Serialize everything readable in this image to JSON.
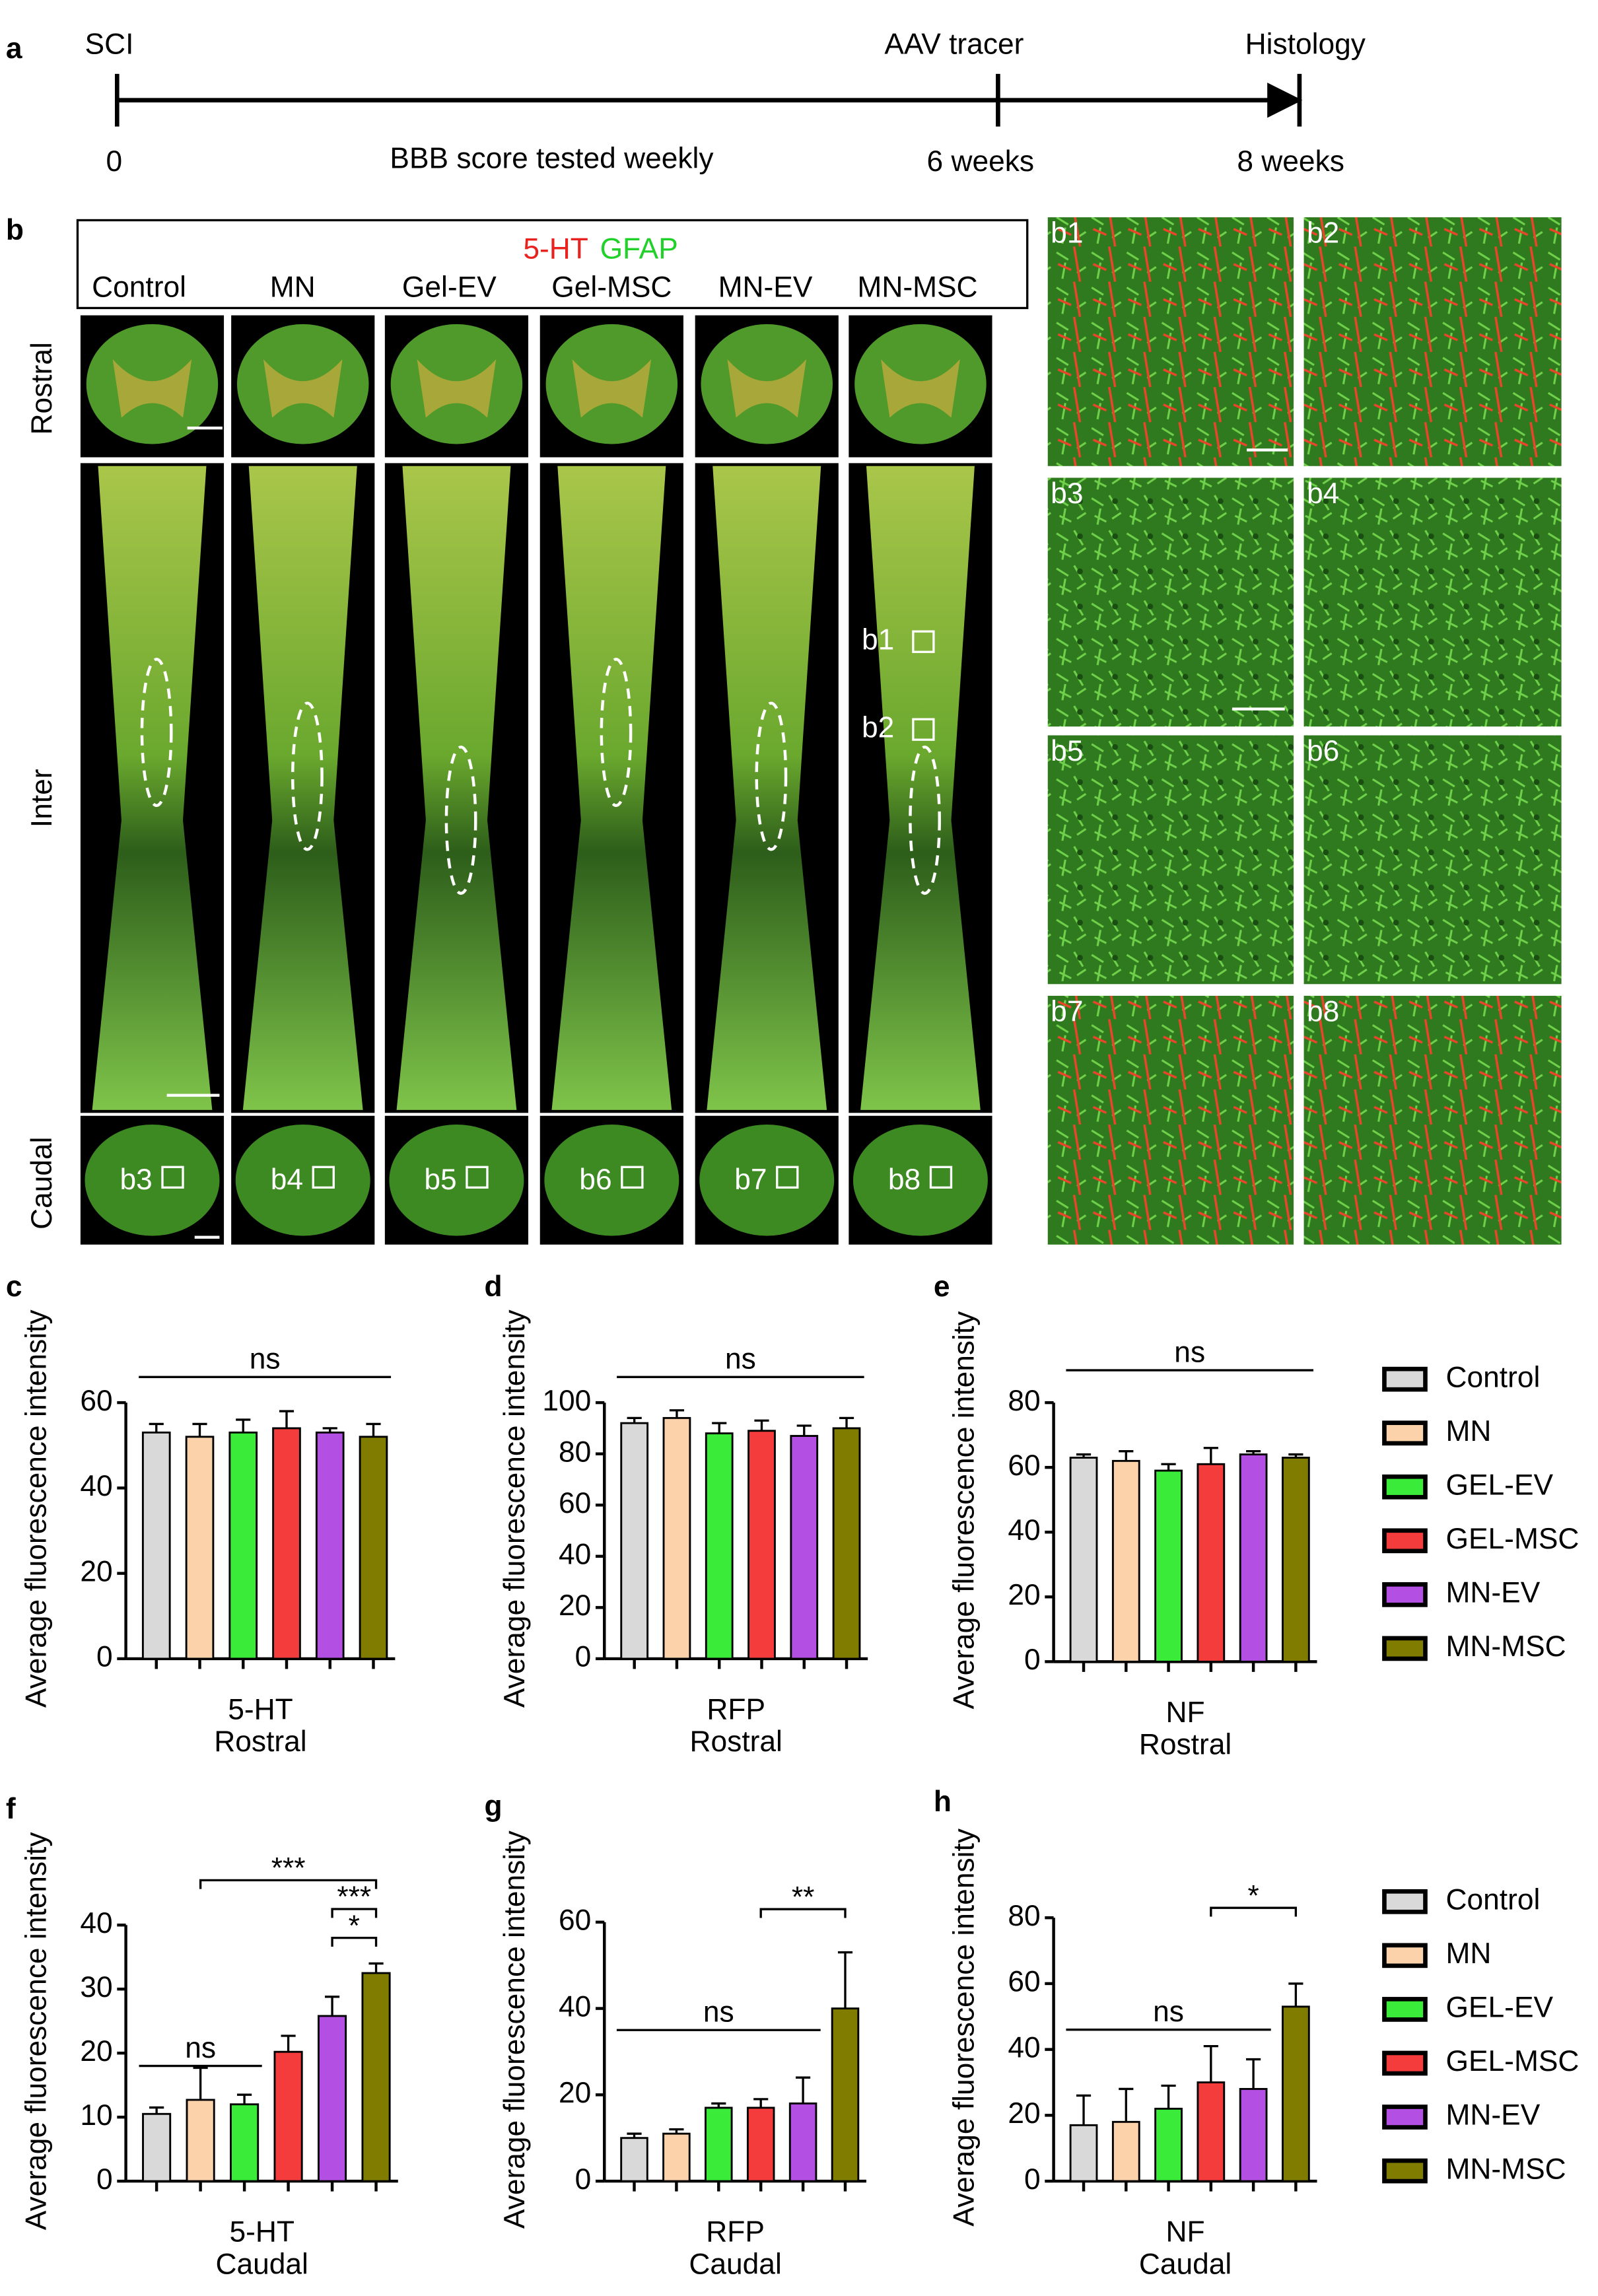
{
  "timeline": {
    "label": "a",
    "events": [
      "SCI",
      "AAV tracer",
      "Histology"
    ],
    "times": [
      "0",
      "6 weeks",
      "8  weeks"
    ],
    "note": "BBB score tested weekly"
  },
  "panel_b": {
    "label": "b",
    "stain": [
      "5-HT",
      "GFAP"
    ],
    "columns": [
      "Control",
      "MN",
      "Gel-EV",
      "Gel-MSC",
      "MN-EV",
      "MN-MSC"
    ],
    "rows": [
      "Rostral",
      "Inter",
      "Caudal"
    ],
    "insets": [
      "b1",
      "b2",
      "b3",
      "b4",
      "b5",
      "b6",
      "b7",
      "b8"
    ]
  },
  "chart_data": [
    {
      "type": "bar",
      "panel": "c",
      "ylabel": "Average fluorescence intensity",
      "xlabel": [
        "5-HT",
        "Rostral"
      ],
      "categories": [
        "Control",
        "MN",
        "GEL-EV",
        "GEL-MSC",
        "MN-EV",
        "MN-MSC"
      ],
      "colors": [
        "#d9d9d9",
        "#fcd2aa",
        "#3aeb3a",
        "#f43c3c",
        "#b34fe3",
        "#807c00"
      ],
      "values": [
        53,
        52,
        53,
        54,
        53,
        52
      ],
      "errors": [
        2,
        3,
        3,
        4,
        1,
        3
      ],
      "ylim": [
        0,
        60
      ],
      "yticks": [
        0,
        20,
        40,
        60
      ],
      "annotations": [
        "ns"
      ]
    },
    {
      "type": "bar",
      "panel": "d",
      "ylabel": "Average fluorescence intensity",
      "xlabel": [
        "RFP",
        "Rostral"
      ],
      "categories": [
        "Control",
        "MN",
        "GEL-EV",
        "GEL-MSC",
        "MN-EV",
        "MN-MSC"
      ],
      "colors": [
        "#d9d9d9",
        "#fcd2aa",
        "#3aeb3a",
        "#f43c3c",
        "#b34fe3",
        "#807c00"
      ],
      "values": [
        92,
        94,
        88,
        89,
        87,
        90
      ],
      "errors": [
        2,
        3,
        4,
        4,
        4,
        4
      ],
      "ylim": [
        0,
        100
      ],
      "yticks": [
        0,
        20,
        40,
        60,
        80,
        100
      ],
      "annotations": [
        "ns"
      ]
    },
    {
      "type": "bar",
      "panel": "e",
      "ylabel": "Average fluorescence intensity",
      "xlabel": [
        "NF",
        "Rostral"
      ],
      "categories": [
        "Control",
        "MN",
        "GEL-EV",
        "GEL-MSC",
        "MN-EV",
        "MN-MSC"
      ],
      "colors": [
        "#d9d9d9",
        "#fcd2aa",
        "#3aeb3a",
        "#f43c3c",
        "#b34fe3",
        "#807c00"
      ],
      "values": [
        63,
        62,
        59,
        61,
        64,
        63
      ],
      "errors": [
        1,
        3,
        2,
        5,
        1,
        1
      ],
      "ylim": [
        0,
        80
      ],
      "yticks": [
        0,
        20,
        40,
        60,
        80
      ],
      "annotations": [
        "ns"
      ]
    },
    {
      "type": "bar",
      "panel": "f",
      "ylabel": "Average fluorescence intensity",
      "xlabel": [
        "5-HT",
        "Caudal"
      ],
      "categories": [
        "Control",
        "MN",
        "GEL-EV",
        "GEL-MSC",
        "MN-EV",
        "MN-MSC"
      ],
      "colors": [
        "#d9d9d9",
        "#fcd2aa",
        "#3aeb3a",
        "#f43c3c",
        "#b34fe3",
        "#807c00"
      ],
      "values": [
        10.5,
        12.7,
        12,
        20.2,
        25.8,
        32.5
      ],
      "errors": [
        1,
        5,
        1.5,
        2.5,
        3,
        1.5
      ],
      "ylim": [
        0,
        40
      ],
      "yticks": [
        0,
        10,
        20,
        30,
        40
      ],
      "annotations": [
        "ns",
        "***",
        "***",
        "*"
      ]
    },
    {
      "type": "bar",
      "panel": "g",
      "ylabel": "Average fluorescence intensity",
      "xlabel": [
        "RFP",
        "Caudal"
      ],
      "categories": [
        "Control",
        "MN",
        "GEL-EV",
        "GEL-MSC",
        "MN-EV",
        "MN-MSC"
      ],
      "colors": [
        "#d9d9d9",
        "#fcd2aa",
        "#3aeb3a",
        "#f43c3c",
        "#b34fe3",
        "#807c00"
      ],
      "values": [
        10,
        11,
        17,
        17,
        18,
        40
      ],
      "errors": [
        1,
        1,
        1,
        2,
        6,
        13
      ],
      "ylim": [
        0,
        60
      ],
      "yticks": [
        0,
        20,
        40,
        60
      ],
      "annotations": [
        "ns",
        "**"
      ]
    },
    {
      "type": "bar",
      "panel": "h",
      "ylabel": "Average fluorescence intensity",
      "xlabel": [
        "NF",
        "Caudal"
      ],
      "categories": [
        "Control",
        "MN",
        "GEL-EV",
        "GEL-MSC",
        "MN-EV",
        "MN-MSC"
      ],
      "colors": [
        "#d9d9d9",
        "#fcd2aa",
        "#3aeb3a",
        "#f43c3c",
        "#b34fe3",
        "#807c00"
      ],
      "values": [
        17,
        18,
        22,
        30,
        28,
        53
      ],
      "errors": [
        9,
        10,
        7,
        11,
        9,
        7
      ],
      "ylim": [
        0,
        80
      ],
      "yticks": [
        0,
        20,
        40,
        60,
        80
      ],
      "annotations": [
        "ns",
        "*"
      ]
    }
  ]
}
